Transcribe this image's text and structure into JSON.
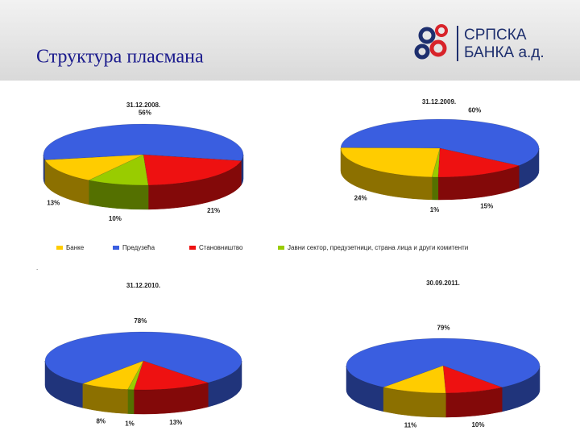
{
  "header": {
    "title": "Структура пласмана",
    "logo": [
      "СРПСКА",
      "БАНКА а.д."
    ]
  },
  "legend": {
    "categories": [
      "Банке",
      "Предузећа",
      "Становништво",
      "Јавни сектор, предузетници, страна лица и други комитенти"
    ],
    "colors": [
      "#ffcc00",
      "#3a5ee0",
      "#ee1111",
      "#99cc00"
    ]
  },
  "chart_data": [
    {
      "type": "pie",
      "title": "31.12.2008.",
      "values": [
        13,
        56,
        21,
        10
      ],
      "value_labels": [
        "13%",
        "56%",
        "21%",
        "10%"
      ]
    },
    {
      "type": "pie",
      "title": "31.12.2009.",
      "values": [
        24,
        60,
        15,
        1
      ],
      "value_labels": [
        "24%",
        "60%",
        "15%",
        "1%"
      ]
    },
    {
      "type": "pie",
      "title": "31.12.2010.",
      "values": [
        8,
        78,
        13,
        1
      ],
      "value_labels": [
        "8%",
        "78%",
        "13%",
        "1%"
      ]
    },
    {
      "type": "pie",
      "title": "30.09.2011.",
      "values": [
        11,
        79,
        10,
        null
      ],
      "value_labels": [
        "11%",
        "79%",
        "10%",
        null
      ]
    }
  ]
}
